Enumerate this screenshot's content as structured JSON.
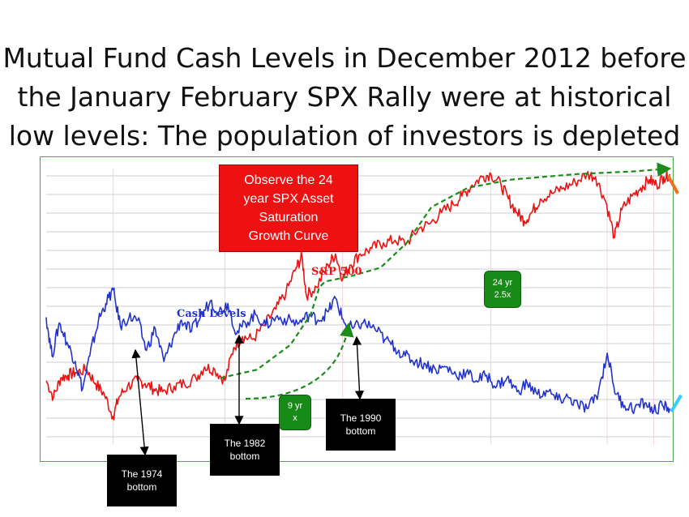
{
  "title": {
    "lines": [
      "Mutual Fund Cash Levels in December 2012 before",
      "the January February SPX Rally were at historical",
      "low levels: The population of investors is depleted"
    ]
  },
  "callouts": {
    "observe": "Observe the 24\nyear SPX Asset\nSaturation\nGrowth  Curve",
    "growth_24": "24 yr\n2.5x",
    "growth_9": "9 yr\nx",
    "bottom_1974": "The 1974\nbottom",
    "bottom_1982": "The 1982\nbottom",
    "bottom_1990": "The 1990\nbottom"
  },
  "colors": {
    "spx": "#ee1111",
    "cash": "#2233cc",
    "frame": "#4aa84a",
    "curve": "#1a8c1a",
    "grid": "#9a9a9a"
  },
  "chart_data": {
    "type": "line",
    "title": "",
    "xlabel": "",
    "ylabel": "",
    "grid": true,
    "notes": "x values are approximate years; y values are relative levels 0-100 (axis unlabeled in original)",
    "series": [
      {
        "name": "S&P 500",
        "color": "#ee1111",
        "points": [
          [
            1970.0,
            23
          ],
          [
            1970.5,
            17
          ],
          [
            1971.0,
            24
          ],
          [
            1971.5,
            25
          ],
          [
            1972.0,
            26
          ],
          [
            1972.8,
            27
          ],
          [
            1973.4,
            22
          ],
          [
            1974.0,
            18
          ],
          [
            1974.6,
            10
          ],
          [
            1975.0,
            17
          ],
          [
            1975.6,
            21
          ],
          [
            1976.3,
            23
          ],
          [
            1976.8,
            22
          ],
          [
            1977.4,
            20
          ],
          [
            1978.0,
            19
          ],
          [
            1978.8,
            21
          ],
          [
            1979.5,
            22
          ],
          [
            1980.3,
            24
          ],
          [
            1980.9,
            28
          ],
          [
            1981.6,
            27
          ],
          [
            1982.3,
            23
          ],
          [
            1982.9,
            35
          ],
          [
            1983.5,
            39
          ],
          [
            1984.2,
            38
          ],
          [
            1985.0,
            43
          ],
          [
            1985.8,
            49
          ],
          [
            1986.5,
            55
          ],
          [
            1987.2,
            64
          ],
          [
            1987.6,
            68
          ],
          [
            1987.9,
            54
          ],
          [
            1988.6,
            57
          ],
          [
            1989.4,
            65
          ],
          [
            1989.9,
            69
          ],
          [
            1990.4,
            60
          ],
          [
            1990.9,
            65
          ],
          [
            1991.6,
            69
          ],
          [
            1992.4,
            71
          ],
          [
            1993.2,
            73
          ],
          [
            1994.0,
            74
          ],
          [
            1994.8,
            73
          ],
          [
            1995.6,
            78
          ],
          [
            1996.4,
            80
          ],
          [
            1997.2,
            84
          ],
          [
            1998.0,
            87
          ],
          [
            1998.6,
            90
          ],
          [
            1999.3,
            94
          ],
          [
            2000.0,
            97
          ],
          [
            2000.6,
            98
          ],
          [
            2001.3,
            94
          ],
          [
            2001.8,
            89
          ],
          [
            2002.4,
            84
          ],
          [
            2002.9,
            81
          ],
          [
            2003.4,
            84
          ],
          [
            2004.0,
            89
          ],
          [
            2004.8,
            91
          ],
          [
            2005.6,
            93
          ],
          [
            2006.4,
            95
          ],
          [
            2007.2,
            98
          ],
          [
            2007.8,
            97
          ],
          [
            2008.5,
            88
          ],
          [
            2009.1,
            75
          ],
          [
            2009.6,
            85
          ],
          [
            2010.3,
            90
          ],
          [
            2010.9,
            93
          ],
          [
            2011.5,
            96
          ],
          [
            2012.0,
            94
          ],
          [
            2012.5,
            97
          ],
          [
            2012.9,
            98
          ]
        ]
      },
      {
        "name": "Cash Levels",
        "color": "#2233cc",
        "points": [
          [
            1970.0,
            46
          ],
          [
            1970.4,
            32
          ],
          [
            1970.9,
            44
          ],
          [
            1971.5,
            36
          ],
          [
            1972.0,
            30
          ],
          [
            1972.5,
            20
          ],
          [
            1973.0,
            32
          ],
          [
            1973.6,
            45
          ],
          [
            1974.1,
            51
          ],
          [
            1974.6,
            56
          ],
          [
            1975.1,
            43
          ],
          [
            1975.7,
            46
          ],
          [
            1976.3,
            45
          ],
          [
            1976.9,
            34
          ],
          [
            1977.5,
            42
          ],
          [
            1978.1,
            30
          ],
          [
            1978.7,
            38
          ],
          [
            1979.3,
            45
          ],
          [
            1980.0,
            41
          ],
          [
            1980.6,
            46
          ],
          [
            1981.3,
            52
          ],
          [
            1981.9,
            48
          ],
          [
            1982.5,
            51
          ],
          [
            1983.1,
            40
          ],
          [
            1983.7,
            44
          ],
          [
            1984.4,
            47
          ],
          [
            1985.1,
            43
          ],
          [
            1985.8,
            46
          ],
          [
            1986.6,
            45
          ],
          [
            1987.4,
            44
          ],
          [
            1988.1,
            47
          ],
          [
            1988.7,
            45
          ],
          [
            1989.4,
            48
          ],
          [
            1989.9,
            53
          ],
          [
            1990.5,
            44
          ],
          [
            1991.1,
            42
          ],
          [
            1991.8,
            44
          ],
          [
            1992.6,
            42
          ],
          [
            1993.3,
            38
          ],
          [
            1994.0,
            35
          ],
          [
            1994.7,
            32
          ],
          [
            1995.4,
            30
          ],
          [
            1996.1,
            29
          ],
          [
            1996.8,
            27
          ],
          [
            1997.5,
            28
          ],
          [
            1998.2,
            25
          ],
          [
            1998.9,
            26
          ],
          [
            1999.6,
            23
          ],
          [
            2000.3,
            25
          ],
          [
            2001.0,
            21
          ],
          [
            2001.7,
            24
          ],
          [
            2002.4,
            19
          ],
          [
            2003.1,
            22
          ],
          [
            2003.8,
            18
          ],
          [
            2004.5,
            19
          ],
          [
            2005.2,
            16
          ],
          [
            2005.9,
            17
          ],
          [
            2006.6,
            14
          ],
          [
            2007.3,
            13
          ],
          [
            2008.0,
            19
          ],
          [
            2008.6,
            33
          ],
          [
            2009.2,
            18
          ],
          [
            2009.8,
            14
          ],
          [
            2010.5,
            13
          ],
          [
            2011.2,
            15
          ],
          [
            2011.8,
            12
          ],
          [
            2012.4,
            14
          ],
          [
            2012.9,
            13
          ]
        ]
      },
      {
        "name": "",
        "color": "#1a8c1a",
        "dashed": true,
        "points": [
          [
            1982.0,
            24
          ],
          [
            1984.5,
            27
          ],
          [
            1986.8,
            36
          ],
          [
            1988.2,
            47
          ],
          [
            1988.8,
            57
          ],
          [
            1989.2,
            59
          ],
          [
            1991.0,
            61
          ],
          [
            1993.0,
            64
          ],
          [
            1994.8,
            73
          ],
          [
            1996.5,
            86
          ],
          [
            1999.0,
            93
          ],
          [
            2002.0,
            96
          ],
          [
            2006.5,
            98
          ],
          [
            2010.5,
            99
          ],
          [
            2012.9,
            100
          ]
        ]
      }
    ],
    "annotations": [
      {
        "text": "The 1974 bottom",
        "x": 1974.8,
        "series": "Cash Levels"
      },
      {
        "text": "The 1982 bottom",
        "x": 1982.2,
        "series": "Cash Levels"
      },
      {
        "text": "The 1990 bottom",
        "x": 1990.0,
        "series": "Cash Levels"
      },
      {
        "text": "24 yr 2.5x",
        "x": 1995.7
      },
      {
        "text": "9 yr x",
        "x": 1985.8
      }
    ]
  }
}
